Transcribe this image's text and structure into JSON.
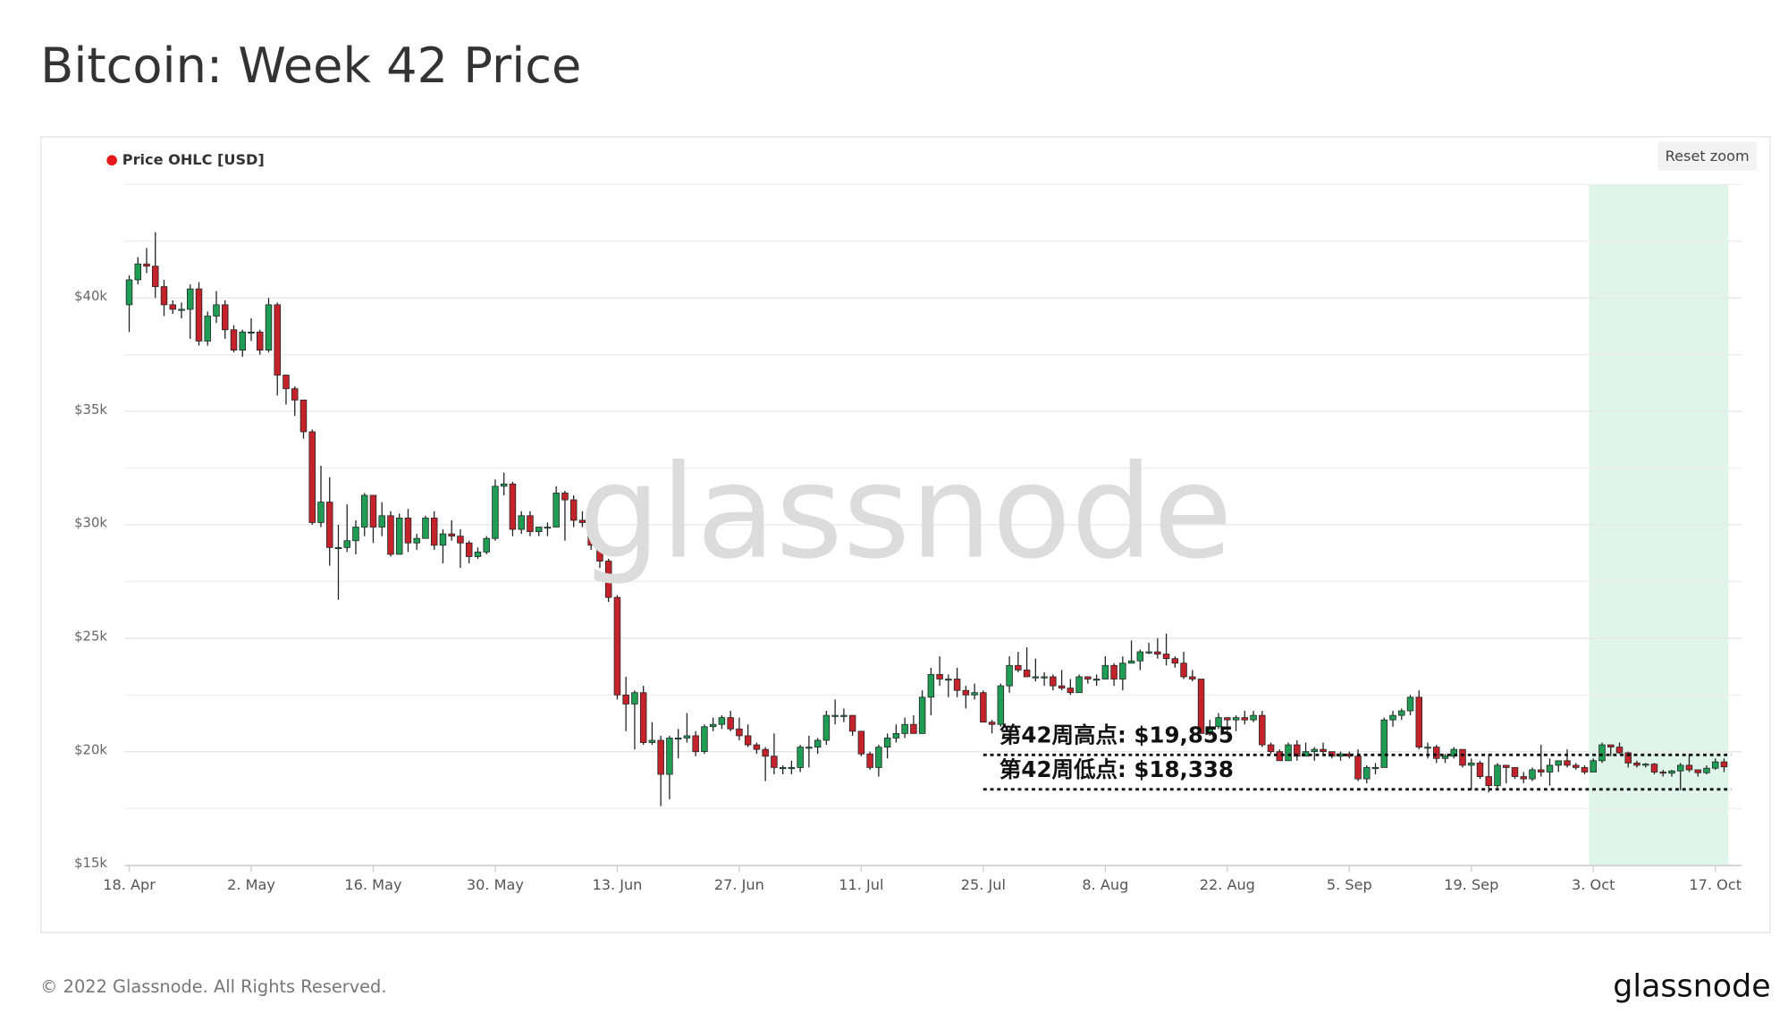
{
  "chart_data": {
    "type": "candlestick",
    "title": "Bitcoin: Week 42 Price",
    "x": [
      "18. Apr",
      "19. Apr",
      "20. Apr",
      "21. Apr",
      "22. Apr",
      "23. Apr",
      "24. Apr",
      "25. Apr",
      "26. Apr",
      "27. Apr",
      "28. Apr",
      "29. Apr",
      "30. Apr",
      "1. May",
      "2. May",
      "3. May",
      "4. May",
      "5. May",
      "6. May",
      "7. May",
      "8. May",
      "9. May",
      "10. May",
      "11. May",
      "12. May",
      "13. May",
      "14. May",
      "15. May",
      "16. May",
      "17. May",
      "18. May",
      "19. May",
      "20. May",
      "21. May",
      "22. May",
      "23. May",
      "24. May",
      "25. May",
      "26. May",
      "27. May",
      "28. May",
      "29. May",
      "30. May",
      "31. May",
      "1. Jun",
      "2. Jun",
      "3. Jun",
      "4. Jun",
      "5. Jun",
      "6. Jun",
      "7. Jun",
      "8. Jun",
      "9. Jun",
      "10. Jun",
      "11. Jun",
      "12. Jun",
      "13. Jun",
      "14. Jun",
      "15. Jun",
      "16. Jun",
      "17. Jun",
      "18. Jun",
      "19. Jun",
      "20. Jun",
      "21. Jun",
      "22. Jun",
      "23. Jun",
      "24. Jun",
      "25. Jun",
      "26. Jun",
      "27. Jun",
      "28. Jun",
      "29. Jun",
      "30. Jun",
      "1. Jul",
      "2. Jul",
      "3. Jul",
      "4. Jul",
      "5. Jul",
      "6. Jul",
      "7. Jul",
      "8. Jul",
      "9. Jul",
      "10. Jul",
      "11. Jul",
      "12. Jul",
      "13. Jul",
      "14. Jul",
      "15. Jul",
      "16. Jul",
      "17. Jul",
      "18. Jul",
      "19. Jul",
      "20. Jul",
      "21. Jul",
      "22. Jul",
      "23. Jul",
      "24. Jul",
      "25. Jul",
      "26. Jul",
      "27. Jul",
      "28. Jul",
      "29. Jul",
      "30. Jul",
      "31. Jul",
      "1. Aug",
      "2. Aug",
      "3. Aug",
      "4. Aug",
      "5. Aug",
      "6. Aug",
      "7. Aug",
      "8. Aug",
      "9. Aug",
      "10. Aug",
      "11. Aug",
      "12. Aug",
      "13. Aug",
      "14. Aug",
      "15. Aug",
      "16. Aug",
      "17. Aug",
      "18. Aug",
      "19. Aug",
      "20. Aug",
      "21. Aug",
      "22. Aug",
      "23. Aug",
      "24. Aug",
      "25. Aug",
      "26. Aug",
      "27. Aug",
      "28. Aug",
      "29. Aug",
      "30. Aug",
      "31. Aug",
      "1. Sep",
      "2. Sep",
      "3. Sep",
      "4. Sep",
      "5. Sep",
      "6. Sep",
      "7. Sep",
      "8. Sep",
      "9. Sep",
      "10. Sep",
      "11. Sep",
      "12. Sep",
      "13. Sep",
      "14. Sep",
      "15. Sep",
      "16. Sep",
      "17. Sep",
      "18. Sep",
      "19. Sep",
      "20. Sep",
      "21. Sep",
      "22. Sep",
      "23. Sep",
      "24. Sep",
      "25. Sep",
      "26. Sep",
      "27. Sep",
      "28. Sep",
      "29. Sep",
      "30. Sep",
      "1. Oct",
      "2. Oct",
      "3. Oct",
      "4. Oct",
      "5. Oct",
      "6. Oct",
      "7. Oct",
      "8. Oct",
      "9. Oct",
      "10. Oct",
      "11. Oct",
      "12. Oct",
      "13. Oct",
      "14. Oct",
      "15. Oct",
      "16. Oct",
      "17. Oct",
      "18. Oct"
    ],
    "series": [
      {
        "name": "Price OHLC [USD]",
        "color": "#e5191b",
        "up_color": "#1f9d55",
        "down_color": "#c4232b",
        "open": [
          39700,
          40800,
          41500,
          41400,
          40500,
          39700,
          39500,
          39500,
          40400,
          38100,
          39200,
          39700,
          38600,
          37700,
          38500,
          38500,
          37700,
          39700,
          36600,
          36000,
          35500,
          34100,
          30100,
          31000,
          29000,
          29000,
          29300,
          29900,
          31300,
          29900,
          30400,
          28700,
          30300,
          29200,
          29400,
          30300,
          29100,
          29600,
          29500,
          29200,
          28600,
          28800,
          29400,
          31700,
          31800,
          29800,
          30400,
          29700,
          29900,
          29900,
          31400,
          31100,
          30200,
          30100,
          29100,
          28400,
          26800,
          22500,
          22100,
          22600,
          20400,
          20500,
          19000,
          20600,
          20600,
          20700,
          20000,
          21100,
          21200,
          21500,
          21000,
          20700,
          20300,
          20100,
          19800,
          19300,
          19300,
          19300,
          20200,
          20200,
          20500,
          21600,
          21600,
          21600,
          20900,
          19900,
          19300,
          20200,
          20600,
          20800,
          21200,
          20800,
          22400,
          23400,
          23200,
          23200,
          22700,
          22500,
          22600,
          21300,
          21200,
          22900,
          23800,
          23600,
          23300,
          23300,
          23300,
          22900,
          22800,
          22600,
          23300,
          23200,
          23200,
          23800,
          23200,
          23900,
          24000,
          24400,
          24400,
          24300,
          24100,
          23900,
          23300,
          23200,
          20800,
          21100,
          21500,
          21400,
          21500,
          21400,
          21600,
          20300,
          20000,
          19600,
          20300,
          19800,
          20000,
          20100,
          20000,
          19800,
          19900,
          19800,
          18800,
          19300,
          19300,
          21400,
          21600,
          21800,
          22400,
          20200,
          20200,
          19700,
          19800,
          20100,
          19400,
          19500,
          18900,
          18500,
          19400,
          19300,
          18900,
          18800,
          19200,
          19100,
          19400,
          19600,
          19400,
          19300,
          19100,
          19600,
          20300,
          20200,
          19950,
          19500,
          19400,
          19450,
          19100,
          19050,
          19150,
          19400,
          19200,
          19070,
          19270,
          19550
        ],
        "high": [
          41000,
          41800,
          42200,
          42900,
          40800,
          39900,
          39800,
          40600,
          40700,
          39400,
          40300,
          39900,
          38800,
          38600,
          39100,
          38600,
          40000,
          39800,
          36600,
          36100,
          35500,
          34200,
          32600,
          32100,
          30000,
          30900,
          30200,
          31400,
          31300,
          31000,
          30600,
          30500,
          30700,
          29600,
          30400,
          30600,
          29800,
          30200,
          29800,
          29300,
          29000,
          29500,
          32000,
          32300,
          31900,
          30600,
          30600,
          29900,
          30100,
          31700,
          31500,
          31300,
          30600,
          30300,
          29300,
          28500,
          26900,
          23300,
          22700,
          22900,
          21300,
          20700,
          20700,
          21000,
          21700,
          20900,
          21200,
          21500,
          21600,
          21800,
          21500,
          21200,
          20400,
          20200,
          20800,
          19400,
          19600,
          20300,
          20700,
          20600,
          21800,
          22300,
          21900,
          21600,
          20900,
          20000,
          20300,
          20800,
          21200,
          21500,
          21600,
          22700,
          23700,
          24200,
          23400,
          23700,
          22900,
          23000,
          22700,
          21400,
          23000,
          24200,
          24400,
          24600,
          24100,
          23500,
          23400,
          23600,
          23200,
          23400,
          23300,
          23400,
          24200,
          23900,
          24200,
          24900,
          24500,
          24800,
          25000,
          25200,
          24200,
          24400,
          23600,
          23200,
          21400,
          21700,
          21500,
          21600,
          21800,
          21800,
          21800,
          20400,
          20100,
          20400,
          20500,
          20400,
          20200,
          20400,
          20000,
          20000,
          20000,
          20100,
          19400,
          19500,
          21500,
          21800,
          21900,
          22500,
          22700,
          20400,
          20300,
          19900,
          20200,
          20100,
          19700,
          19600,
          19900,
          19500,
          19400,
          19300,
          19100,
          19300,
          20300,
          19700,
          19600,
          20100,
          19500,
          19400,
          19700,
          20400,
          20300,
          20400,
          20000,
          19600,
          19500,
          19500,
          19200,
          19200,
          19500,
          19900,
          19200,
          19400,
          19700,
          19700
        ],
        "low": [
          38500,
          40600,
          41100,
          40000,
          39200,
          39300,
          39100,
          38200,
          37900,
          37900,
          38900,
          38200,
          37600,
          37400,
          38100,
          37500,
          37600,
          35700,
          35300,
          34800,
          33800,
          30000,
          29900,
          28200,
          26700,
          28800,
          28700,
          29500,
          29200,
          29500,
          28600,
          28700,
          28800,
          28900,
          29400,
          28900,
          28300,
          29300,
          28100,
          28300,
          28500,
          28700,
          29300,
          31300,
          29500,
          29600,
          29500,
          29500,
          29500,
          29900,
          29300,
          29900,
          29900,
          28900,
          28100,
          26600,
          22300,
          20900,
          20100,
          20300,
          20300,
          17600,
          17900,
          19700,
          20400,
          19800,
          19900,
          20900,
          21000,
          20900,
          20500,
          20200,
          19900,
          18700,
          19000,
          19000,
          19000,
          19100,
          19300,
          19900,
          20300,
          21200,
          21300,
          20700,
          19800,
          19200,
          18900,
          19700,
          20400,
          20600,
          20800,
          20800,
          21600,
          22900,
          22400,
          22400,
          21900,
          22300,
          21300,
          20800,
          21100,
          22600,
          23500,
          23300,
          23100,
          22900,
          22700,
          22700,
          22500,
          22600,
          23000,
          22900,
          23200,
          22900,
          22700,
          23900,
          23600,
          24300,
          24100,
          23800,
          23700,
          23200,
          23100,
          20800,
          20700,
          21000,
          20900,
          20900,
          21200,
          21300,
          20200,
          19900,
          19600,
          19600,
          19600,
          19800,
          19600,
          19800,
          19700,
          19600,
          19700,
          18700,
          18600,
          19000,
          19300,
          21100,
          21400,
          21600,
          20100,
          19700,
          19500,
          19500,
          19700,
          19300,
          18300,
          18800,
          18200,
          18400,
          18600,
          18800,
          18600,
          18700,
          18900,
          18500,
          19100,
          19300,
          19200,
          19000,
          19100,
          19500,
          19800,
          19900,
          19300,
          19300,
          19300,
          19000,
          18900,
          18900,
          18300,
          19100,
          18900,
          19000,
          19200,
          19100
        ],
        "close": [
          40800,
          41500,
          41400,
          40500,
          39700,
          39500,
          39500,
          40400,
          38100,
          39200,
          39700,
          38600,
          37700,
          38500,
          38500,
          37700,
          39700,
          36600,
          36000,
          35500,
          34100,
          30100,
          31000,
          29000,
          29000,
          29300,
          29900,
          31300,
          29900,
          30400,
          28700,
          30300,
          29200,
          29400,
          30300,
          29100,
          29600,
          29500,
          29200,
          28600,
          28800,
          29400,
          31700,
          31800,
          29800,
          30400,
          29700,
          29900,
          29900,
          31400,
          31100,
          30200,
          30100,
          29100,
          28400,
          26800,
          22500,
          22100,
          22600,
          20400,
          20500,
          19000,
          20600,
          20600,
          20700,
          20000,
          21100,
          21200,
          21500,
          21000,
          20700,
          20300,
          20100,
          19800,
          19300,
          19300,
          19300,
          20200,
          20200,
          20500,
          21600,
          21600,
          21600,
          20900,
          19900,
          19300,
          20200,
          20600,
          20800,
          21200,
          20800,
          22400,
          23400,
          23200,
          23200,
          22700,
          22500,
          22600,
          21300,
          21200,
          22900,
          23800,
          23600,
          23300,
          23300,
          23300,
          22900,
          22800,
          22600,
          23300,
          23200,
          23200,
          23800,
          23200,
          23900,
          24000,
          24400,
          24400,
          24300,
          24100,
          23900,
          23300,
          23200,
          20800,
          21100,
          21500,
          21400,
          21500,
          21400,
          21600,
          20300,
          20000,
          19600,
          20300,
          19800,
          20000,
          20100,
          20000,
          19800,
          19900,
          19800,
          18800,
          19300,
          19300,
          21400,
          21600,
          21800,
          22400,
          20200,
          20200,
          19700,
          19800,
          20100,
          19400,
          19500,
          18900,
          18500,
          19400,
          19300,
          18900,
          18800,
          19200,
          19100,
          19400,
          19600,
          19400,
          19300,
          19100,
          19600,
          20300,
          20200,
          19950,
          19500,
          19400,
          19450,
          19100,
          19050,
          19150,
          19400,
          19200,
          19070,
          19270,
          19550,
          19330
        ]
      }
    ],
    "ylim": [
      15000,
      45000
    ],
    "yticks": [
      {
        "value": 15000,
        "label": "$15k"
      },
      {
        "value": 20000,
        "label": "$20k"
      },
      {
        "value": 25000,
        "label": "$25k"
      },
      {
        "value": 30000,
        "label": "$30k"
      },
      {
        "value": 35000,
        "label": "$35k"
      },
      {
        "value": 40000,
        "label": "$40k"
      }
    ],
    "minor_yticks": [
      17500,
      22500,
      27500,
      32500,
      37500,
      42500,
      45000
    ],
    "xticks": [
      "18. Apr",
      "2. May",
      "16. May",
      "30. May",
      "13. Jun",
      "27. Jun",
      "11. Jul",
      "25. Jul",
      "8. Aug",
      "22. Aug",
      "5. Sep",
      "19. Sep",
      "3. Oct",
      "17. Oct"
    ],
    "grid": true,
    "legend": "top-left",
    "highlight_range": [
      "3. Oct",
      "18. Oct"
    ],
    "highlight_color": "#dff5ea",
    "annotations": [
      {
        "text": "第42周高点: $19,855",
        "value": 19855
      },
      {
        "text": "第42周低点: $18,338",
        "value": 18338
      }
    ],
    "watermark": "glassnode"
  },
  "reset_zoom": "Reset zoom",
  "footer": "© 2022 Glassnode. All Rights Reserved.",
  "logo": "glassnode"
}
